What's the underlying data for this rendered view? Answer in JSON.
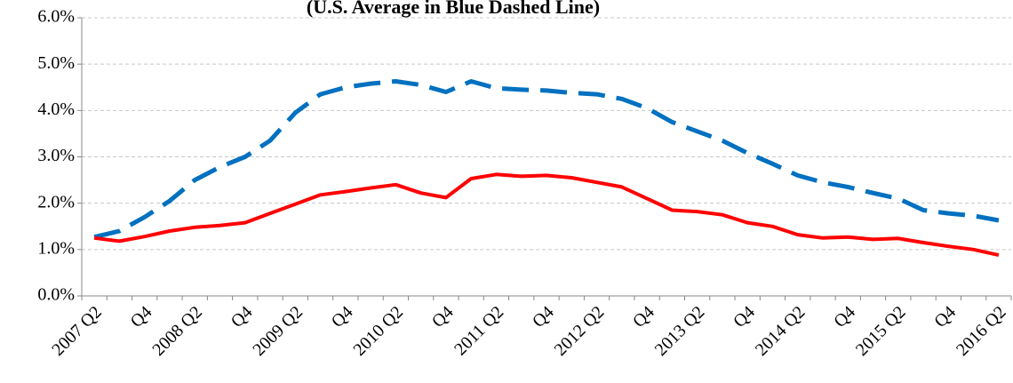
{
  "chart_data": {
    "type": "line",
    "title": "(U.S. Average in Blue Dashed Line)",
    "categories": [
      "2007 Q2",
      null,
      "Q4",
      null,
      "2008 Q2",
      null,
      "Q4",
      null,
      "2009 Q2",
      null,
      "Q4",
      null,
      "2010 Q2",
      null,
      "Q4",
      null,
      "2011 Q2",
      null,
      "Q4",
      null,
      "2012 Q2",
      null,
      "Q4",
      null,
      "2013 Q2",
      null,
      "Q4",
      null,
      "2014 Q2",
      null,
      "Q4",
      null,
      "2015 Q2",
      null,
      "Q4",
      null,
      "2016 Q2"
    ],
    "series": [
      {
        "color": "#0070c0",
        "dashed": true,
        "values": [
          1.27,
          1.4,
          1.7,
          2.05,
          2.5,
          2.78,
          3.0,
          3.35,
          3.95,
          4.35,
          4.5,
          4.58,
          4.63,
          4.55,
          4.4,
          4.63,
          4.48,
          4.45,
          4.43,
          4.38,
          4.35,
          4.25,
          4.05,
          3.75,
          3.55,
          3.35,
          3.08,
          2.85,
          2.6,
          2.45,
          2.35,
          2.22,
          2.1,
          1.85,
          1.78,
          1.73,
          1.63
        ]
      },
      {
        "color": "#ff0000",
        "dashed": false,
        "values": [
          1.25,
          1.18,
          1.28,
          1.4,
          1.48,
          1.52,
          1.58,
          1.78,
          1.98,
          2.18,
          2.25,
          2.33,
          2.4,
          2.22,
          2.12,
          2.53,
          2.62,
          2.58,
          2.6,
          2.55,
          2.45,
          2.35,
          2.1,
          1.85,
          1.82,
          1.75,
          1.58,
          1.5,
          1.32,
          1.25,
          1.27,
          1.22,
          1.24,
          1.15,
          1.07,
          1.0,
          0.88
        ]
      }
    ],
    "ylim": [
      0,
      6
    ],
    "yticks": [
      {
        "value": 0,
        "label": "0.0%"
      },
      {
        "value": 1,
        "label": "1.0%"
      },
      {
        "value": 2,
        "label": "2.0%"
      },
      {
        "value": 3,
        "label": "3.0%"
      },
      {
        "value": 4,
        "label": "4.0%"
      },
      {
        "value": 5,
        "label": "5.0%"
      },
      {
        "value": 6,
        "label": "6.0%"
      }
    ],
    "grid": true
  }
}
